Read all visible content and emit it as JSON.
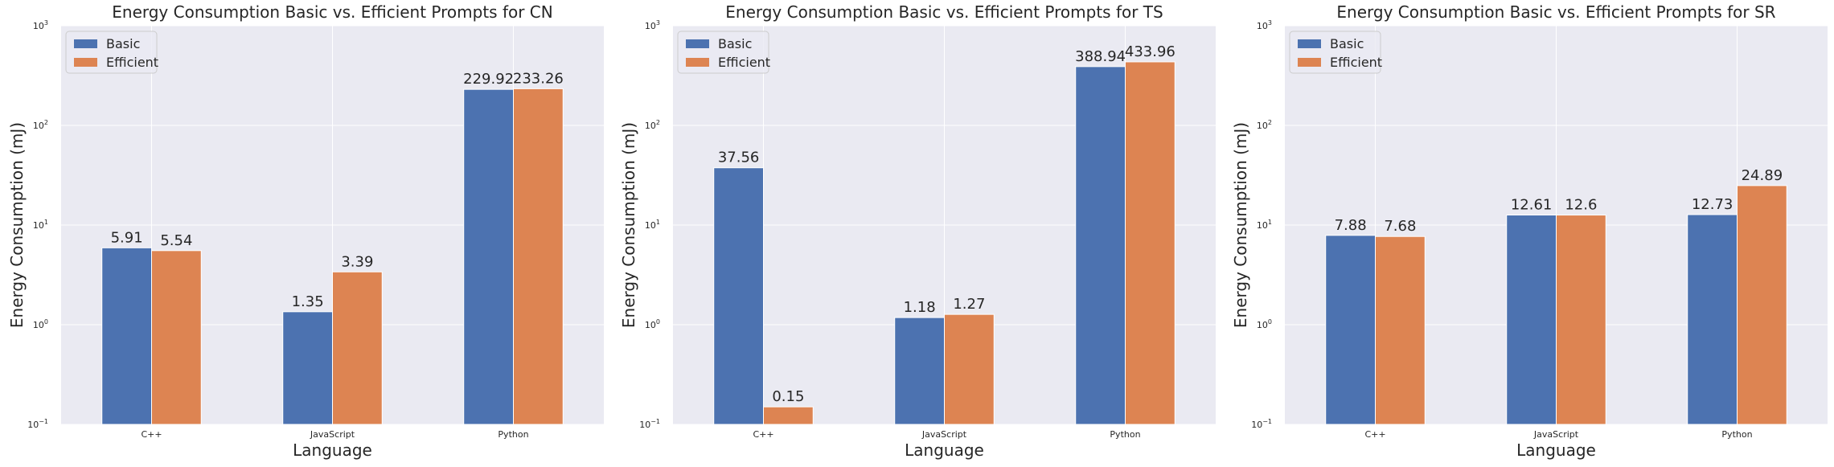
{
  "chart_data": [
    {
      "type": "bar",
      "title": "Energy Consumption Basic vs. Efficient Prompts for CN",
      "xlabel": "Language",
      "ylabel": "Energy Consumption (mJ)",
      "yscale": "log",
      "ylim": [
        0.1,
        1000
      ],
      "yticks": [
        {
          "base": "10",
          "exp": "−1"
        },
        {
          "base": "10",
          "exp": "0"
        },
        {
          "base": "10",
          "exp": "1"
        },
        {
          "base": "10",
          "exp": "2"
        },
        {
          "base": "10",
          "exp": "3"
        }
      ],
      "categories": [
        "C++",
        "JavaScript",
        "Python"
      ],
      "series": [
        {
          "name": "Basic",
          "values": [
            5.91,
            1.35,
            229.92
          ],
          "labels": [
            "5.91",
            "1.35",
            "229.92"
          ]
        },
        {
          "name": "Efficient",
          "values": [
            5.54,
            3.39,
            233.26
          ],
          "labels": [
            "5.54",
            "3.39",
            "233.26"
          ]
        }
      ],
      "grid": true,
      "legend": "upper-left"
    },
    {
      "type": "bar",
      "title": "Energy Consumption Basic vs. Efficient Prompts for TS",
      "xlabel": "Language",
      "ylabel": "Energy Consumption (mJ)",
      "yscale": "log",
      "ylim": [
        0.1,
        1000
      ],
      "yticks": [
        {
          "base": "10",
          "exp": "−1"
        },
        {
          "base": "10",
          "exp": "0"
        },
        {
          "base": "10",
          "exp": "1"
        },
        {
          "base": "10",
          "exp": "2"
        },
        {
          "base": "10",
          "exp": "3"
        }
      ],
      "categories": [
        "C++",
        "JavaScript",
        "Python"
      ],
      "series": [
        {
          "name": "Basic",
          "values": [
            37.56,
            1.18,
            388.94
          ],
          "labels": [
            "37.56",
            "1.18",
            "388.94"
          ]
        },
        {
          "name": "Efficient",
          "values": [
            0.15,
            1.27,
            433.96
          ],
          "labels": [
            "0.15",
            "1.27",
            "433.96"
          ]
        }
      ],
      "grid": true,
      "legend": "upper-left"
    },
    {
      "type": "bar",
      "title": "Energy Consumption Basic vs. Efficient Prompts for SR",
      "xlabel": "Language",
      "ylabel": "Energy Consumption (mJ)",
      "yscale": "log",
      "ylim": [
        0.1,
        1000
      ],
      "yticks": [
        {
          "base": "10",
          "exp": "−1"
        },
        {
          "base": "10",
          "exp": "0"
        },
        {
          "base": "10",
          "exp": "1"
        },
        {
          "base": "10",
          "exp": "2"
        },
        {
          "base": "10",
          "exp": "3"
        }
      ],
      "categories": [
        "C++",
        "JavaScript",
        "Python"
      ],
      "series": [
        {
          "name": "Basic",
          "values": [
            7.88,
            12.61,
            12.73
          ],
          "labels": [
            "7.88",
            "12.61",
            "12.73"
          ]
        },
        {
          "name": "Efficient",
          "values": [
            7.68,
            12.6,
            24.89
          ],
          "labels": [
            "7.68",
            "12.6",
            "24.89"
          ]
        }
      ],
      "grid": true,
      "legend": "upper-left"
    }
  ],
  "colors": {
    "basic": "#4c72b0",
    "efficient": "#dd8452",
    "axes_bg": "#eaeaf2",
    "grid": "#ffffff",
    "text": "#262626"
  }
}
